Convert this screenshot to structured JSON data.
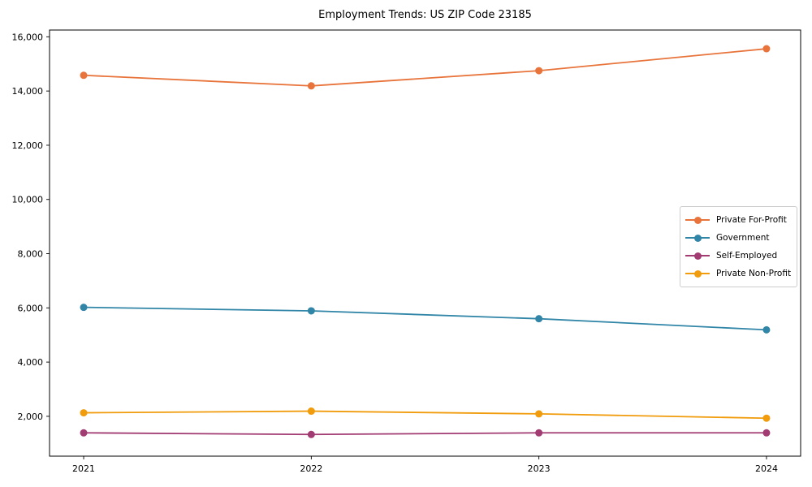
{
  "chart_data": {
    "type": "line",
    "title": "Employment Trends: US ZIP Code 23185",
    "x": [
      2021,
      2022,
      2023,
      2024
    ],
    "x_tick_labels": [
      "2021",
      "2022",
      "2023",
      "2024"
    ],
    "y_ticks": [
      2000,
      4000,
      6000,
      8000,
      10000,
      12000,
      14000,
      16000
    ],
    "y_tick_labels": [
      "2,000",
      "4,000",
      "6,000",
      "8,000",
      "10,000",
      "12,000",
      "14,000",
      "16,000"
    ],
    "xlim": [
      2020.85,
      2024.15
    ],
    "ylim": [
      530,
      16250
    ],
    "grid": false,
    "legend_position": "center right",
    "series": [
      {
        "name": "Private For-Profit",
        "color": "#e8743b",
        "values": [
          14580,
          14190,
          14750,
          15560
        ]
      },
      {
        "name": "Government",
        "color": "#3186a8",
        "values": [
          6020,
          5890,
          5600,
          5190
        ]
      },
      {
        "name": "Self-Employed",
        "color": "#a23b72",
        "values": [
          1390,
          1330,
          1390,
          1390
        ]
      },
      {
        "name": "Private Non-Profit",
        "color": "#f09c0c",
        "values": [
          2130,
          2190,
          2090,
          1930
        ]
      }
    ]
  }
}
